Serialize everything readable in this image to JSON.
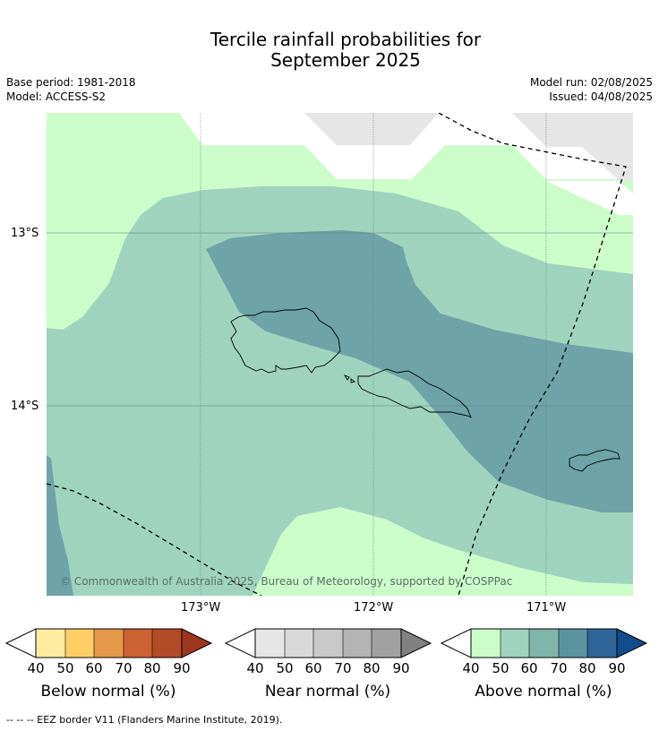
{
  "header": {
    "title_line1": "Tercile rainfall probabilities for",
    "title_line2": "September 2025",
    "base_period": "Base period: 1981-2018",
    "model": "Model: ACCESS-S2",
    "model_run": "Model run: 02/08/2025",
    "issued": "Issued: 04/08/2025"
  },
  "map": {
    "lat_ticks": [
      "13°S",
      "14°S"
    ],
    "lon_ticks": [
      "173°W",
      "172°W",
      "171°W"
    ],
    "copyright": "© Commonwealth of Australia 2025, Bureau of Meteorology, supported by COSPPac",
    "colors": {
      "above_40": "#ccfcca",
      "above_50": "#a0d3be",
      "above_60": "#6ea3a8",
      "no_data": "#e6e6e6",
      "land_outline": "#000000",
      "eez_border": "#000000"
    }
  },
  "colorbars": [
    {
      "label": "Below normal (%)",
      "ticks": [
        "40",
        "50",
        "60",
        "70",
        "80",
        "90"
      ],
      "colors": [
        "#ffffff",
        "#ffeca0",
        "#ffcf66",
        "#e59849",
        "#cd6232",
        "#b34a28",
        "#9c361f"
      ]
    },
    {
      "label": "Near normal (%)",
      "ticks": [
        "40",
        "50",
        "60",
        "70",
        "80",
        "90"
      ],
      "colors": [
        "#ffffff",
        "#e6e6e6",
        "#d9d9d9",
        "#c9c9c9",
        "#b4b4b4",
        "#a1a1a1",
        "#808080"
      ]
    },
    {
      "label": "Above normal (%)",
      "ticks": [
        "40",
        "50",
        "60",
        "70",
        "80",
        "90"
      ],
      "colors": [
        "#ffffff",
        "#ccfcca",
        "#a0d3be",
        "#80b5ab",
        "#5b94a1",
        "#2f6598",
        "#124c8c"
      ]
    }
  ],
  "footer": {
    "eez_note": "--  --  -- EEZ border V11 (Flanders Marine Institute, 2019)."
  }
}
